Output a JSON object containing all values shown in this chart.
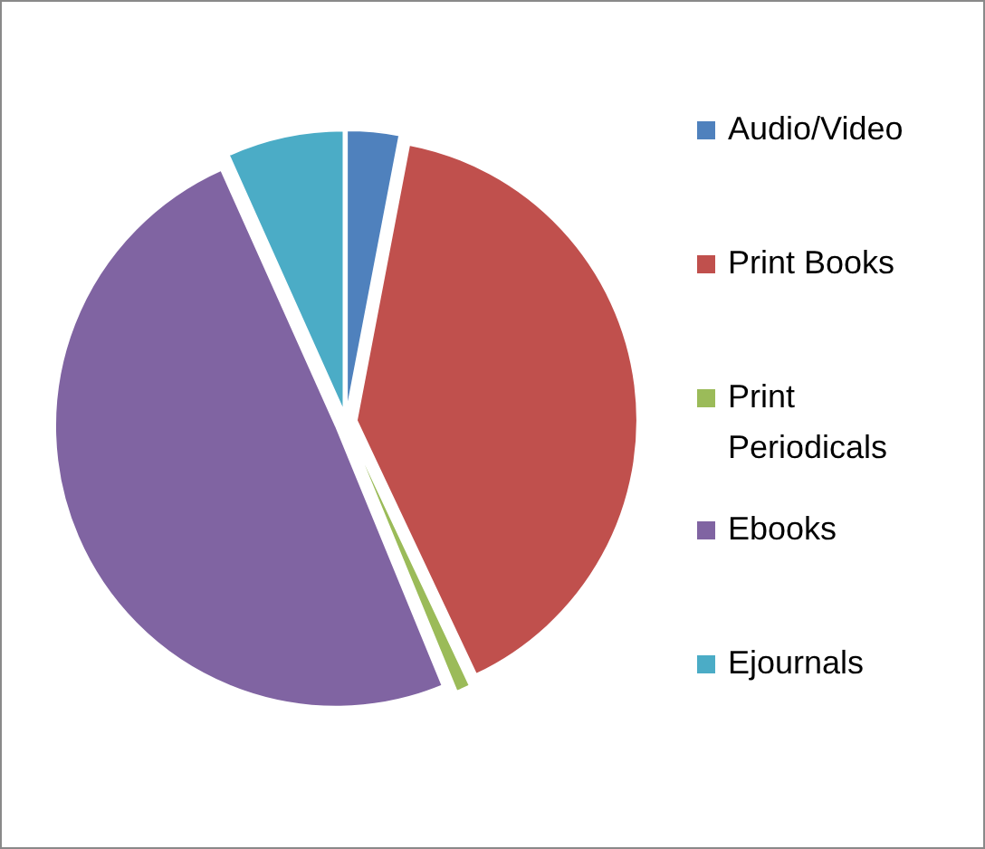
{
  "chart_data": {
    "type": "pie",
    "categories": [
      "Audio/Video",
      "Print Books",
      "Print Periodicals",
      "Ebooks",
      "Ejournals"
    ],
    "values": [
      3,
      40,
      0.8,
      49.5,
      6.7
    ],
    "colors": [
      "#4f81bd",
      "#c0504d",
      "#9bbb59",
      "#8064a2",
      "#4bacc6"
    ],
    "legend": "right"
  }
}
